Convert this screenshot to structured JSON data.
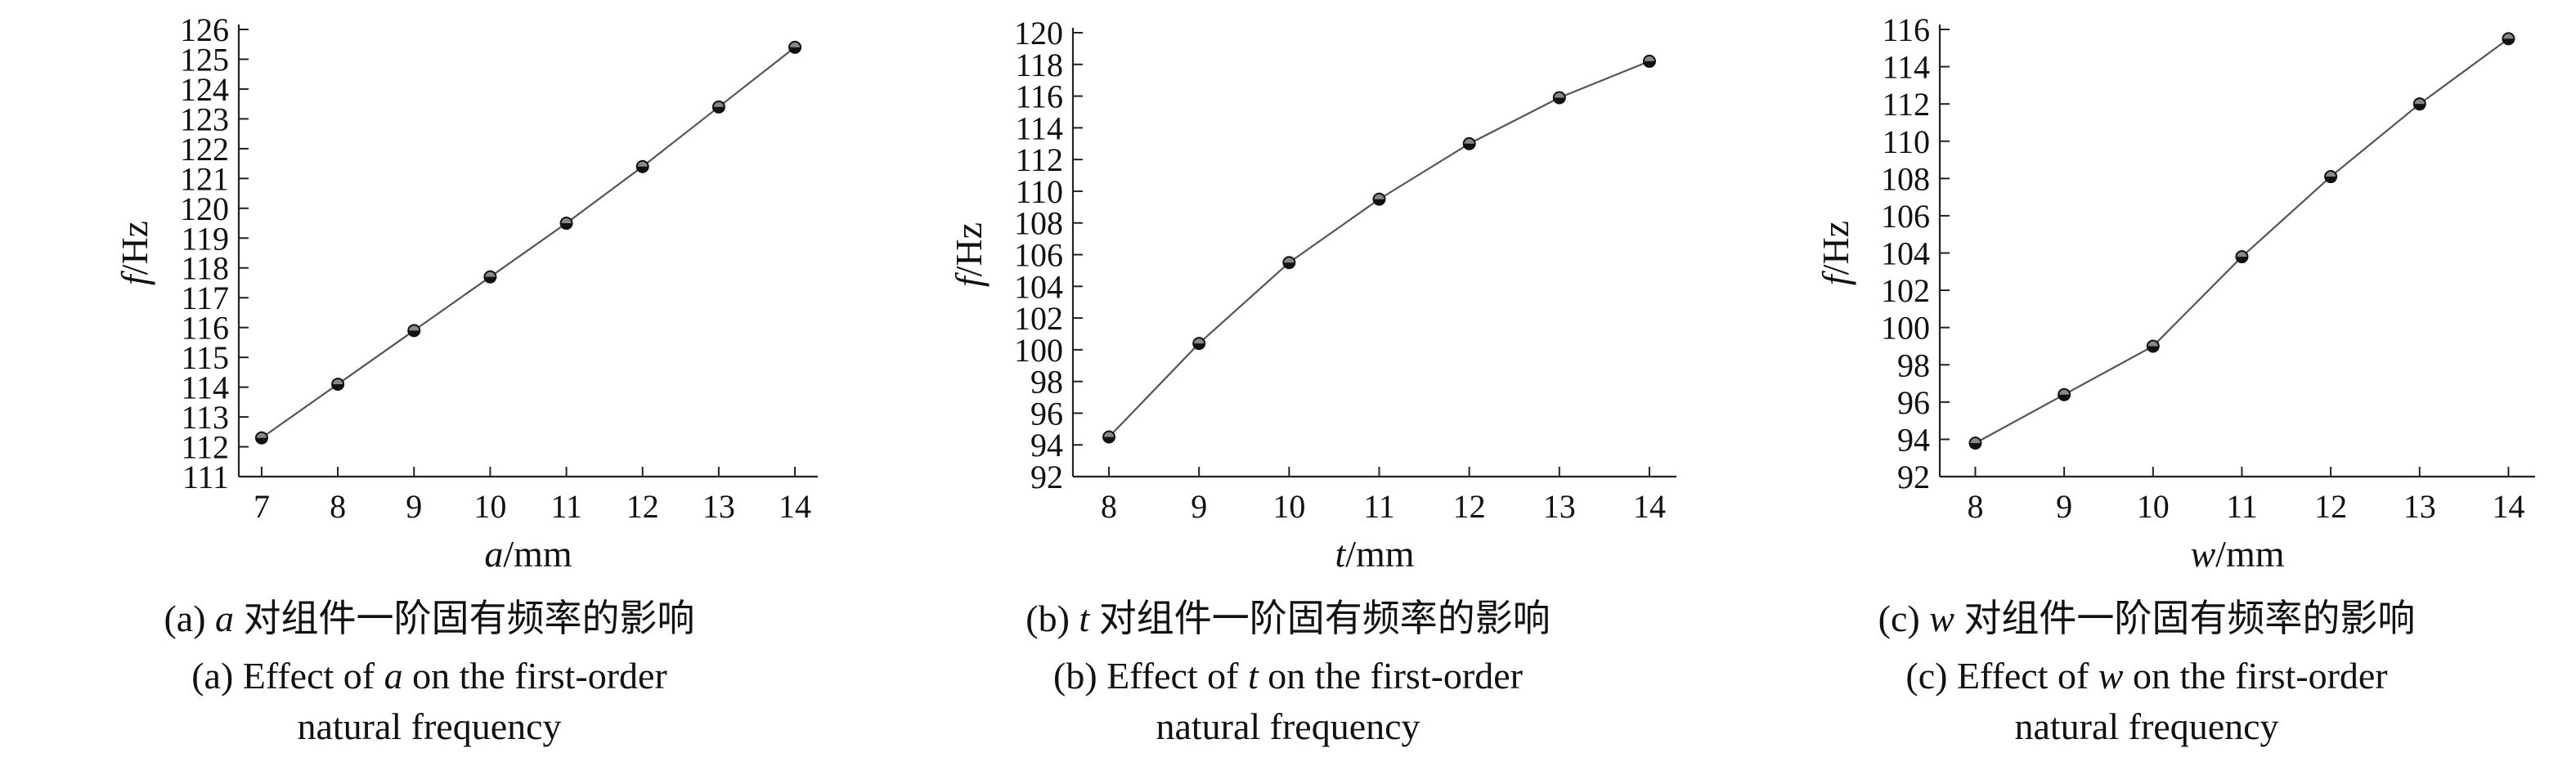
{
  "chart_data": [
    {
      "type": "line",
      "xvar": "a",
      "xunit": "/mm",
      "yvar": "f",
      "yunit": "/Hz",
      "x": [
        7,
        8,
        9,
        10,
        11,
        12,
        13,
        14
      ],
      "series": [
        {
          "values": [
            112.3,
            114.1,
            115.9,
            117.7,
            119.5,
            121.4,
            123.4,
            125.4
          ]
        }
      ],
      "xticks": [
        7,
        8,
        9,
        10,
        11,
        12,
        13,
        14
      ],
      "xlim": [
        6.7,
        14.3
      ],
      "yticks": [
        111,
        112,
        113,
        114,
        115,
        116,
        117,
        118,
        119,
        120,
        121,
        122,
        123,
        124,
        125,
        126
      ],
      "ylim": [
        111,
        126
      ],
      "grid": false,
      "caption_cn_prefix": "(a) ",
      "caption_cn_var": "a",
      "caption_cn_rest": " 对组件一阶固有频率的影响",
      "caption_en_prefix": "(a) Effect of ",
      "caption_en_var": "a",
      "caption_en_rest": " on the first-order",
      "caption_en_line2": "natural frequency"
    },
    {
      "type": "line",
      "xvar": "t",
      "xunit": "/mm",
      "yvar": "f",
      "yunit": "/Hz",
      "x": [
        8,
        9,
        10,
        11,
        12,
        13,
        14
      ],
      "series": [
        {
          "values": [
            94.5,
            100.4,
            105.5,
            109.5,
            113.0,
            115.9,
            118.2
          ]
        }
      ],
      "xticks": [
        8,
        9,
        10,
        11,
        12,
        13,
        14
      ],
      "xlim": [
        7.6,
        14.3
      ],
      "yticks": [
        92,
        94,
        96,
        98,
        100,
        102,
        104,
        106,
        108,
        110,
        112,
        114,
        116,
        118,
        120
      ],
      "ylim": [
        92,
        120
      ],
      "grid": false,
      "caption_cn_prefix": "(b) ",
      "caption_cn_var": "t",
      "caption_cn_rest": " 对组件一阶固有频率的影响",
      "caption_en_prefix": "(b) Effect of ",
      "caption_en_var": "t",
      "caption_en_rest": " on the first-order",
      "caption_en_line2": "natural frequency"
    },
    {
      "type": "line",
      "xvar": "w",
      "xunit": "/mm",
      "yvar": "f",
      "yunit": "/Hz",
      "x": [
        8,
        9,
        10,
        11,
        12,
        13,
        14
      ],
      "series": [
        {
          "values": [
            93.8,
            96.4,
            99.0,
            103.8,
            108.1,
            112.0,
            115.5
          ]
        }
      ],
      "xticks": [
        8,
        9,
        10,
        11,
        12,
        13,
        14
      ],
      "xlim": [
        7.6,
        14.3
      ],
      "yticks": [
        92,
        94,
        96,
        98,
        100,
        102,
        104,
        106,
        108,
        110,
        112,
        114,
        116
      ],
      "ylim": [
        92,
        116
      ],
      "grid": false,
      "caption_cn_prefix": "(c) ",
      "caption_cn_var": "w",
      "caption_cn_rest": " 对组件一阶固有频率的影响",
      "caption_en_prefix": "(c) Effect of ",
      "caption_en_var": "w",
      "caption_en_rest": " on the first-order",
      "caption_en_line2": "natural frequency"
    }
  ]
}
